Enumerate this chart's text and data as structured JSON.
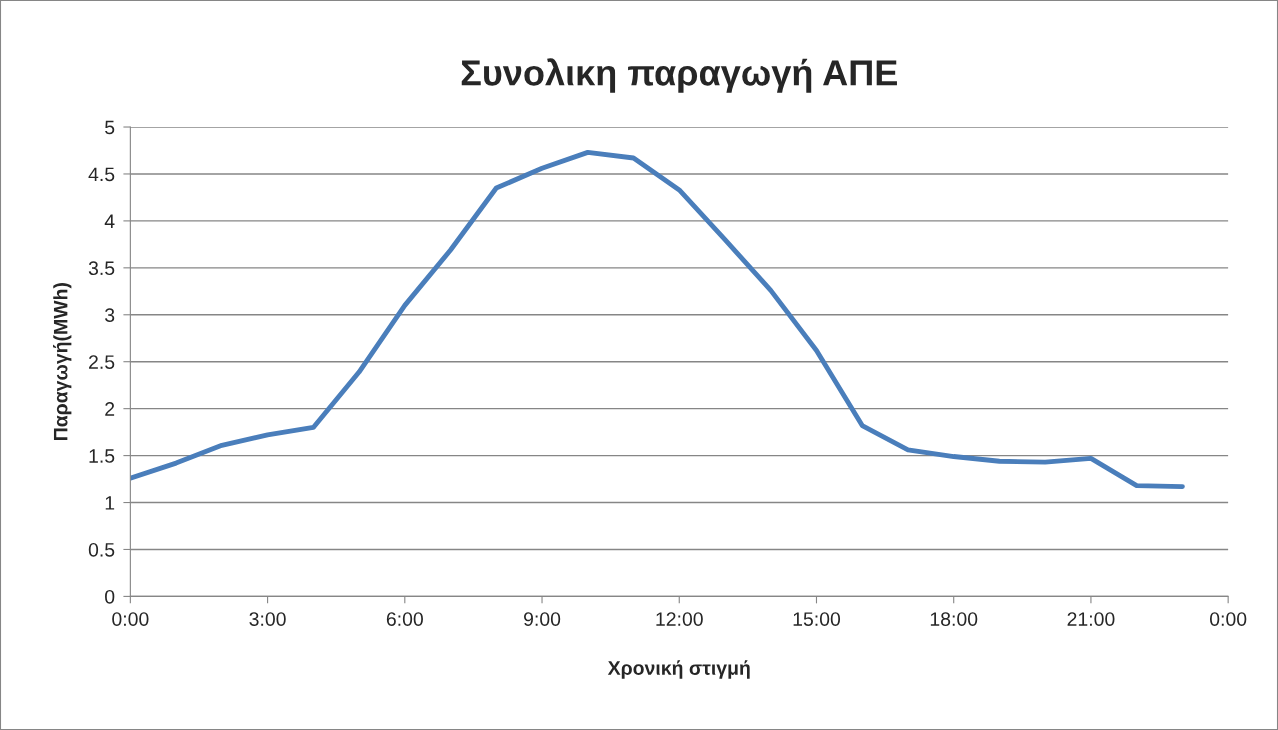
{
  "chart_data": {
    "type": "line",
    "title": "Συνολικη παραγωγή ΑΠΕ",
    "xlabel": "Χρονική στιγμή",
    "ylabel": "Παραγωγή(MWh)",
    "x": [
      0,
      1,
      2,
      3,
      4,
      5,
      6,
      7,
      8,
      9,
      10,
      11,
      12,
      13,
      14,
      15,
      16,
      17,
      18,
      19,
      20,
      21,
      22,
      23
    ],
    "series": [
      {
        "color": "#4a7ebb",
        "values": [
          1.26,
          1.42,
          1.61,
          1.72,
          1.8,
          2.39,
          3.1,
          3.69,
          4.35,
          4.56,
          4.73,
          4.67,
          4.33,
          3.8,
          3.26,
          2.62,
          1.82,
          1.56,
          1.49,
          1.44,
          1.43,
          1.47,
          1.18,
          1.17
        ]
      }
    ],
    "xlim": [
      0,
      24
    ],
    "xticks": [
      {
        "value": 0,
        "label": "0:00"
      },
      {
        "value": 3,
        "label": "3:00"
      },
      {
        "value": 6,
        "label": "6:00"
      },
      {
        "value": 9,
        "label": "9:00"
      },
      {
        "value": 12,
        "label": "12:00"
      },
      {
        "value": 15,
        "label": "15:00"
      },
      {
        "value": 18,
        "label": "18:00"
      },
      {
        "value": 21,
        "label": "21:00"
      },
      {
        "value": 24,
        "label": "0:00"
      }
    ],
    "ylim": [
      0,
      5
    ],
    "yticks": [
      0,
      0.5,
      1,
      1.5,
      2,
      2.5,
      3,
      3.5,
      4,
      4.5,
      5
    ],
    "grid": "y",
    "marker": "none",
    "line_style": "solid"
  }
}
